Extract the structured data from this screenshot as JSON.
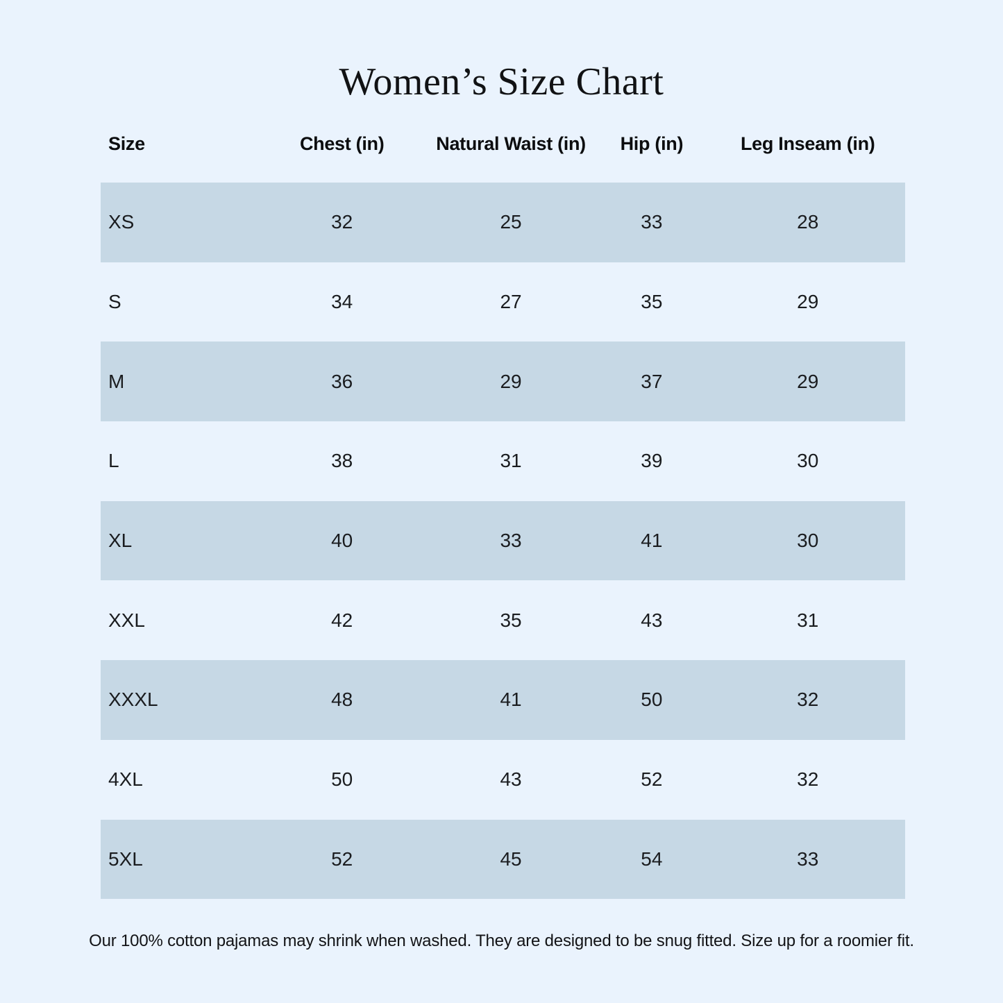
{
  "page": {
    "title": "Women’s Size Chart",
    "footnote": "Our 100% cotton pajamas may shrink when washed. They are designed to be snug fitted. Size up for a roomier fit."
  },
  "colors": {
    "page_background": "#eaf3fd",
    "row_stripe": "#c6d8e5",
    "text_dark": "#111214"
  },
  "chart_data": {
    "type": "table",
    "title": "Women’s Size Chart",
    "columns": [
      "Size",
      "Chest (in)",
      "Natural Waist (in)",
      "Hip (in)",
      "Leg Inseam (in)"
    ],
    "rows": [
      [
        "XS",
        32,
        25,
        33,
        28
      ],
      [
        "S",
        34,
        27,
        35,
        29
      ],
      [
        "M",
        36,
        29,
        37,
        29
      ],
      [
        "L",
        38,
        31,
        39,
        30
      ],
      [
        "XL",
        40,
        33,
        41,
        30
      ],
      [
        "XXL",
        42,
        35,
        43,
        31
      ],
      [
        "XXXL",
        48,
        41,
        50,
        32
      ],
      [
        "4XL",
        50,
        43,
        52,
        32
      ],
      [
        "5XL",
        52,
        45,
        54,
        33
      ]
    ],
    "layout_hints": {
      "striped_rows": "1st,3rd,5th,7th,9th",
      "first_column_align": "left",
      "value_columns_align": "center",
      "grid_lines": false,
      "footnote_position": "bottom-center"
    }
  }
}
